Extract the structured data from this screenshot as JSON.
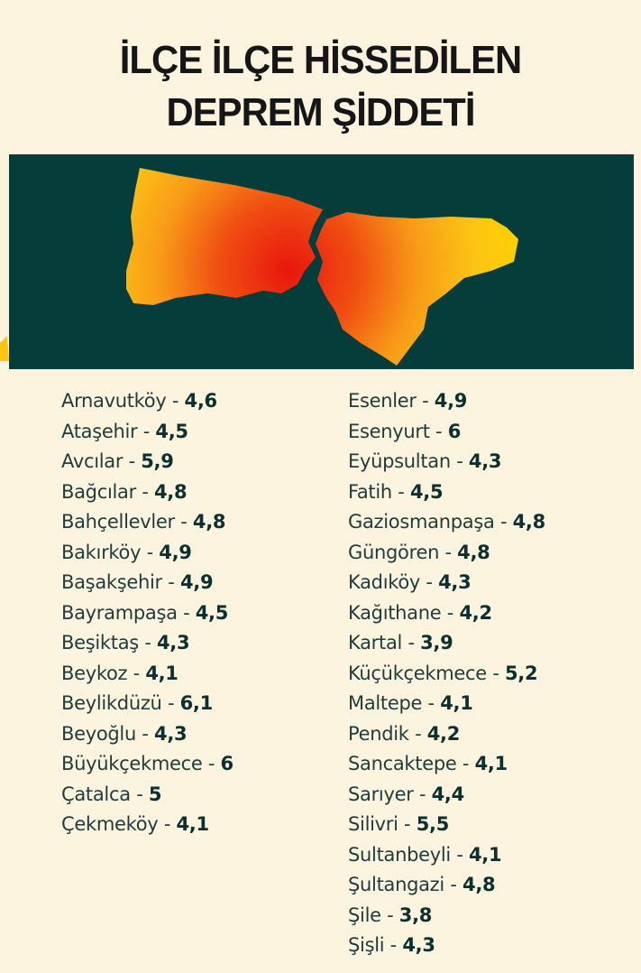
{
  "header": {
    "title_lines": [
      "İLÇE İLÇE HİSSEDİLEN",
      "DEPREM ŞİDDETİ"
    ]
  },
  "separator": "-",
  "columns": [
    [
      {
        "name": "Arnavutköy",
        "value": "4,6"
      },
      {
        "name": "Ataşehir",
        "value": "4,5"
      },
      {
        "name": "Avcılar",
        "value": "5,9"
      },
      {
        "name": "Bağcılar",
        "value": "4,8"
      },
      {
        "name": "Bahçellevler",
        "value": "4,8"
      },
      {
        "name": "Bakırköy",
        "value": "4,9"
      },
      {
        "name": "Başakşehir",
        "value": "4,9"
      },
      {
        "name": "Bayrampaşa",
        "value": "4,5"
      },
      {
        "name": "Beşiktaş",
        "value": "4,3"
      },
      {
        "name": "Beykoz",
        "value": "4,1"
      },
      {
        "name": "Beylikdüzü",
        "value": "6,1"
      },
      {
        "name": "Beyoğlu",
        "value": "4,3"
      },
      {
        "name": "Büyükçekmece",
        "value": "6"
      },
      {
        "name": "Çatalca",
        "value": "5"
      },
      {
        "name": "Çekmeköy",
        "value": "4,1"
      }
    ],
    [
      {
        "name": "Esenler",
        "value": "4,9"
      },
      {
        "name": "Esenyurt",
        "value": "6"
      },
      {
        "name": "Eyüpsultan",
        "value": "4,3"
      },
      {
        "name": "Fatih",
        "value": "4,5"
      },
      {
        "name": "Gaziosmanpaşa",
        "value": "4,8"
      },
      {
        "name": "Güngören",
        "value": "4,8"
      },
      {
        "name": "Kadıköy",
        "value": "4,3"
      },
      {
        "name": "Kağıthane",
        "value": "4,2"
      },
      {
        "name": "Kartal",
        "value": "3,9"
      },
      {
        "name": "Küçükçekmece",
        "value": "5,2"
      },
      {
        "name": "Maltepe",
        "value": "4,1"
      },
      {
        "name": "Pendik",
        "value": "4,2"
      },
      {
        "name": "Sancaktepe",
        "value": "4,1"
      },
      {
        "name": "Sarıyer",
        "value": "4,4"
      },
      {
        "name": "Silivri",
        "value": "5,5"
      },
      {
        "name": "Sultanbeyli",
        "value": "4,1"
      },
      {
        "name": "Şultangazi",
        "value": "4,8"
      },
      {
        "name": "Şile",
        "value": "3,8"
      },
      {
        "name": "Şişli",
        "value": "4,3"
      }
    ]
  ]
}
